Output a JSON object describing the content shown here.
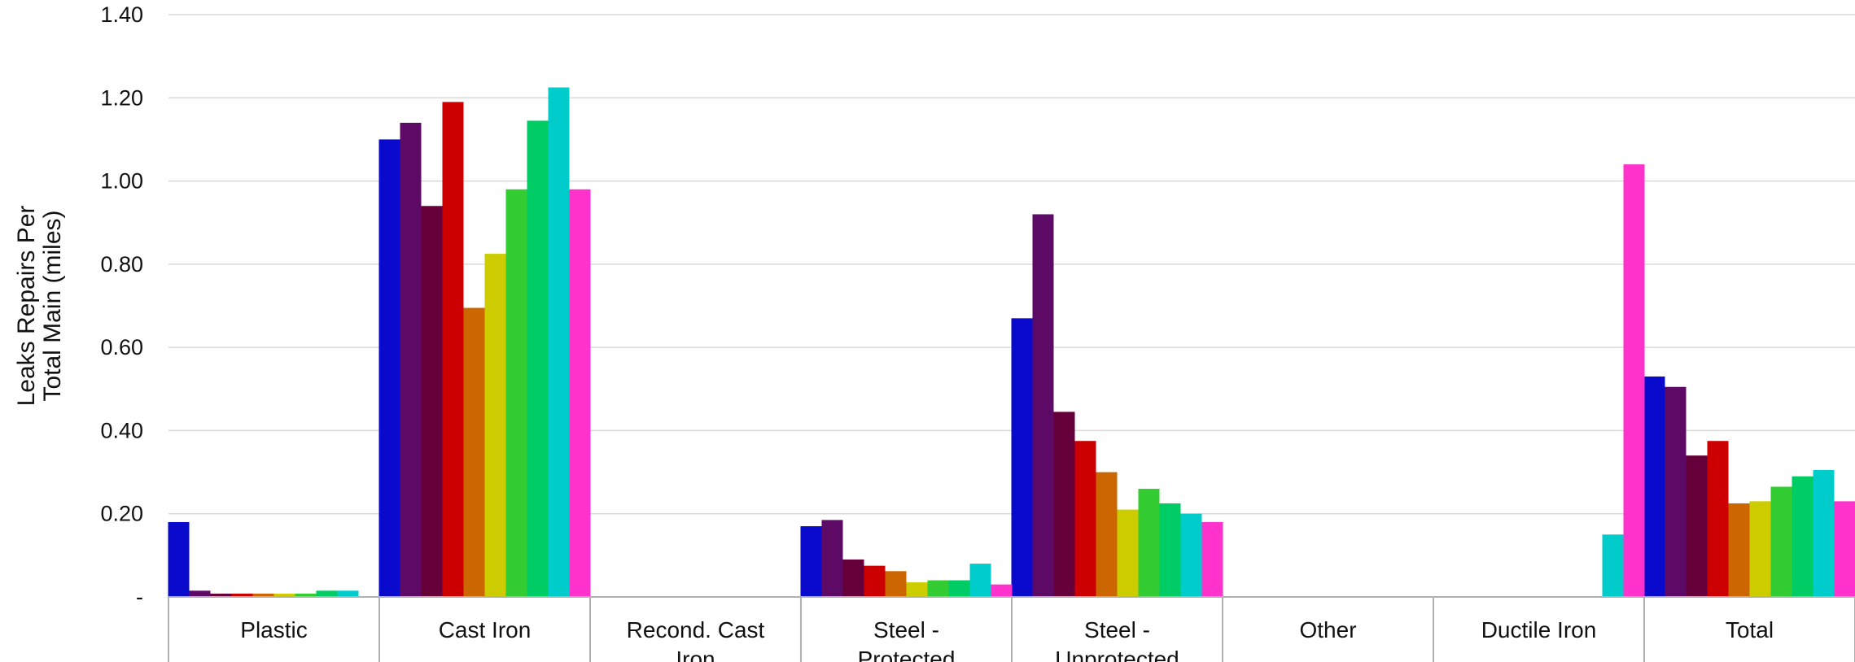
{
  "chart_data": {
    "type": "bar",
    "title": "",
    "ylabel_lines": [
      "Leaks Repairs Per",
      "Total Main (miles)"
    ],
    "ylim": [
      0,
      1.4
    ],
    "yticks": [
      {
        "value": 0,
        "label": "-"
      },
      {
        "value": 0.2,
        "label": "0.20"
      },
      {
        "value": 0.4,
        "label": "0.40"
      },
      {
        "value": 0.6,
        "label": "0.60"
      },
      {
        "value": 0.8,
        "label": "0.80"
      },
      {
        "value": 1.0,
        "label": "1.00"
      },
      {
        "value": 1.2,
        "label": "1.20"
      },
      {
        "value": 1.4,
        "label": "1.40"
      }
    ],
    "grid": true,
    "legend": "none",
    "categories": [
      [
        "Plastic"
      ],
      [
        "Cast Iron"
      ],
      [
        "Recond. Cast",
        "Iron"
      ],
      [
        "Steel -",
        "Protected"
      ],
      [
        "Steel -",
        "Unprotected"
      ],
      [
        "Other"
      ],
      [
        "Ductile Iron"
      ],
      [
        "Total"
      ]
    ],
    "series": [
      {
        "color": "#0a0acc",
        "values": [
          0.18,
          1.1,
          0,
          0.17,
          0.67,
          0,
          0,
          0.53
        ]
      },
      {
        "color": "#5c0a66",
        "values": [
          0.015,
          1.14,
          0,
          0.185,
          0.92,
          0,
          0,
          0.505
        ]
      },
      {
        "color": "#66003a",
        "values": [
          0.008,
          0.94,
          0,
          0.09,
          0.445,
          0,
          0,
          0.34
        ]
      },
      {
        "color": "#cc0000",
        "values": [
          0.008,
          1.19,
          0,
          0.075,
          0.375,
          0,
          0,
          0.375
        ]
      },
      {
        "color": "#cc6600",
        "values": [
          0.008,
          0.695,
          0,
          0.062,
          0.3,
          0,
          0,
          0.225
        ]
      },
      {
        "color": "#cccc00",
        "values": [
          0.008,
          0.825,
          0,
          0.035,
          0.21,
          0,
          0,
          0.23
        ]
      },
      {
        "color": "#33cc33",
        "values": [
          0.008,
          0.98,
          0,
          0.04,
          0.26,
          0,
          0,
          0.265
        ]
      },
      {
        "color": "#00cc66",
        "values": [
          0.015,
          1.145,
          0,
          0.04,
          0.225,
          0,
          0,
          0.29
        ]
      },
      {
        "color": "#00cccc",
        "values": [
          0.015,
          1.225,
          0,
          0.08,
          0.2,
          0,
          0.15,
          0.305
        ]
      },
      {
        "color": "#ff33cc",
        "values": [
          0,
          0.98,
          0,
          0.03,
          0.18,
          0,
          1.04,
          0.23
        ]
      }
    ]
  }
}
